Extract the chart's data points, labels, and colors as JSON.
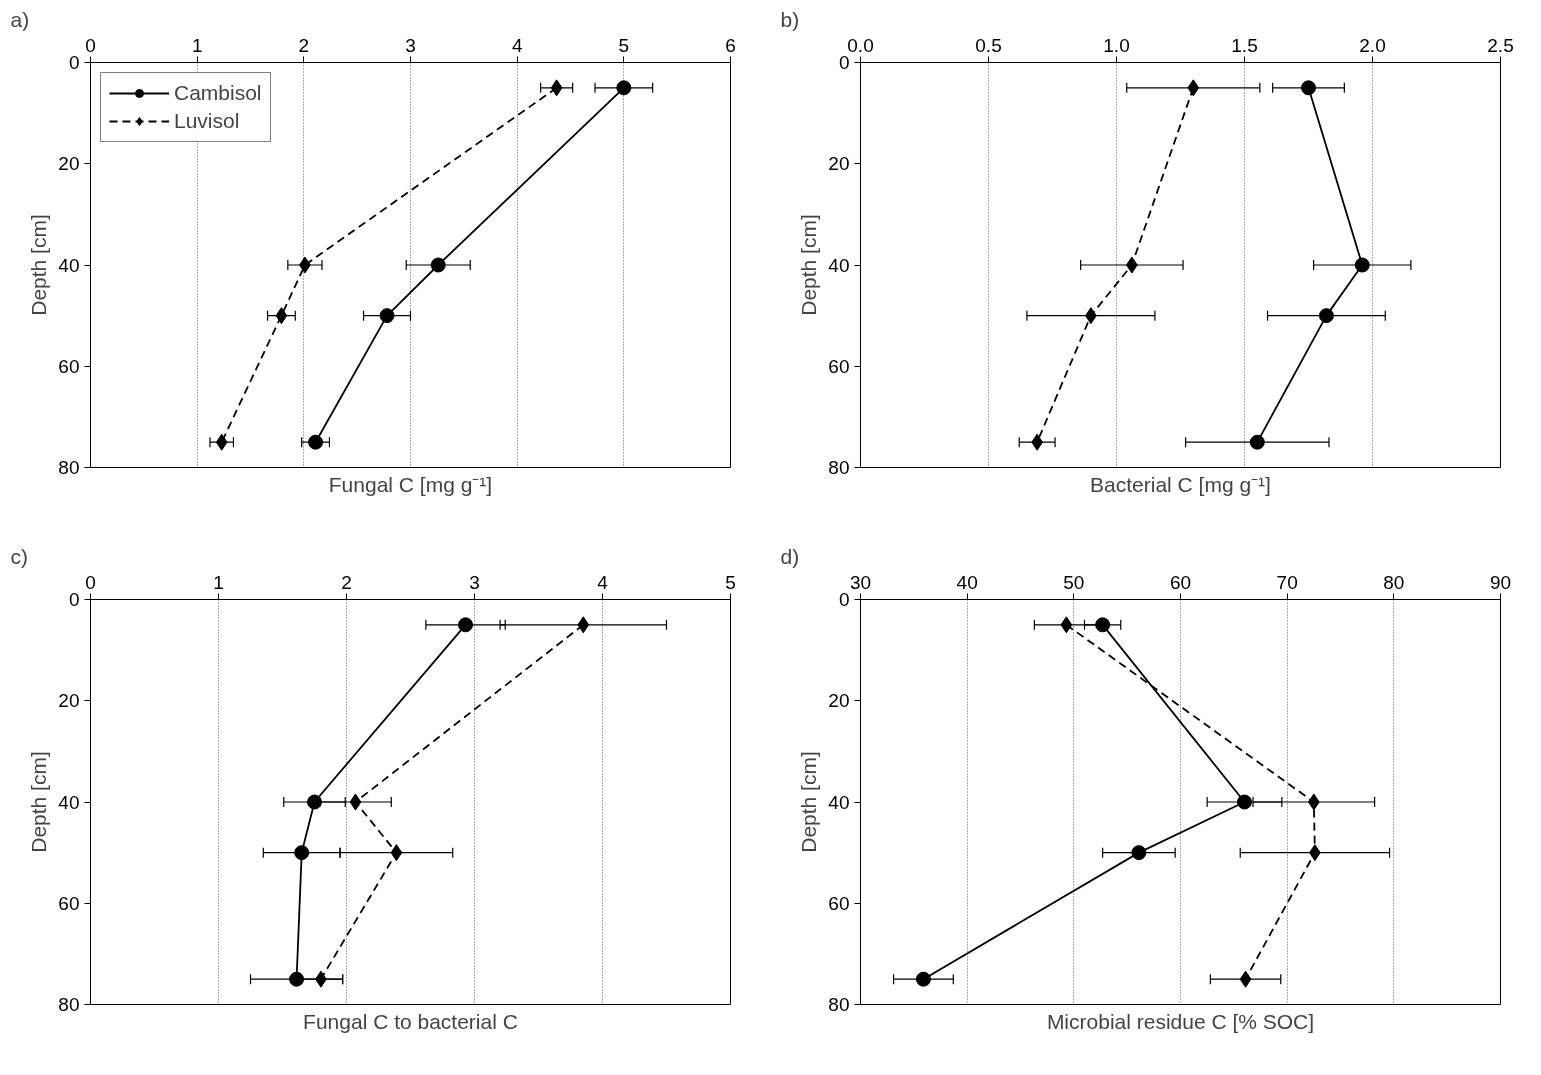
{
  "chart_data": [
    {
      "type": "line",
      "annotations": [
        "a)"
      ],
      "xlabel": "Fungal C [mg g⁻¹]",
      "ylabel": "Depth [cm]",
      "xlim": [
        0,
        6
      ],
      "xticks": [
        0,
        1,
        2,
        3,
        4,
        5,
        6
      ],
      "ylim": [
        80,
        0
      ],
      "yticks": [
        0,
        20,
        40,
        60,
        80
      ],
      "grid": "x",
      "legend": "top left",
      "series": [
        {
          "name": "Cambisol",
          "color": "#000000",
          "marker": "circle",
          "line_style": "solid",
          "x": [
            5.0,
            3.26,
            2.78,
            2.11
          ],
          "values": [
            5,
            40,
            50,
            75
          ],
          "xerrors": [
            0.27,
            0.3,
            0.22,
            0.13
          ]
        },
        {
          "name": "Luvisol",
          "color": "#000000",
          "marker": "diamond",
          "line_style": "dashed",
          "x": [
            4.37,
            2.01,
            1.79,
            1.23
          ],
          "values": [
            5,
            40,
            50,
            75
          ],
          "xerrors": [
            0.15,
            0.16,
            0.13,
            0.11
          ]
        }
      ]
    },
    {
      "type": "line",
      "annotations": [
        "b)"
      ],
      "xlabel": "Bacterial C [mg g⁻¹]",
      "ylabel": "Depth [cm]",
      "xlim": [
        0,
        2.5
      ],
      "xticks": [
        {
          "value": 0,
          "label": "0.0"
        },
        0.5,
        {
          "value": 1,
          "label": "1.0"
        },
        1.5,
        {
          "value": 2,
          "label": "2.0"
        },
        2.5
      ],
      "ylim": [
        80,
        0
      ],
      "yticks": [
        0,
        20,
        40,
        60,
        80
      ],
      "grid": "x",
      "series": [
        {
          "color": "#000000",
          "marker": "circle",
          "line_style": "solid",
          "x": [
            1.75,
            1.96,
            1.82,
            1.55
          ],
          "values": [
            5,
            40,
            50,
            75
          ],
          "xerrors": [
            0.14,
            0.19,
            0.23,
            0.28
          ]
        },
        {
          "color": "#000000",
          "marker": "diamond",
          "line_style": "dashed",
          "x": [
            1.3,
            1.06,
            0.9,
            0.69
          ],
          "values": [
            5,
            40,
            50,
            75
          ],
          "xerrors": [
            0.26,
            0.2,
            0.25,
            0.07
          ]
        }
      ]
    },
    {
      "type": "line",
      "annotations": [
        "c)"
      ],
      "xlabel": "Fungal C to bacterial C",
      "ylabel": "Depth [cm]",
      "xlim": [
        0,
        5
      ],
      "xticks": [
        0,
        1,
        2,
        3,
        4,
        5
      ],
      "ylim": [
        80,
        0
      ],
      "yticks": [
        0,
        20,
        40,
        60,
        80
      ],
      "grid": "x",
      "series": [
        {
          "color": "#000000",
          "marker": "circle",
          "line_style": "solid",
          "x": [
            2.93,
            1.75,
            1.65,
            1.61
          ],
          "values": [
            5,
            40,
            50,
            75
          ],
          "xerrors": [
            0.31,
            0.24,
            0.3,
            0.36
          ]
        },
        {
          "color": "#000000",
          "marker": "diamond",
          "line_style": "dashed",
          "x": [
            3.85,
            2.07,
            2.39,
            1.8
          ],
          "values": [
            5,
            40,
            50,
            75
          ],
          "xerrors": [
            0.65,
            0.28,
            0.44,
            0.17
          ]
        }
      ]
    },
    {
      "type": "line",
      "annotations": [
        "d)"
      ],
      "xlabel": "Microbial residue C [% SOC]",
      "ylabel": "Depth [cm]",
      "xlim": [
        30,
        90
      ],
      "xticks": [
        30,
        40,
        50,
        60,
        70,
        80,
        90
      ],
      "ylim": [
        80,
        0
      ],
      "yticks": [
        0,
        20,
        40,
        60,
        80
      ],
      "grid": "x",
      "series": [
        {
          "color": "#000000",
          "marker": "circle",
          "line_style": "solid",
          "x": [
            52.7,
            66.0,
            56.1,
            35.9
          ],
          "values": [
            5,
            40,
            50,
            75
          ],
          "xerrors": [
            1.7,
            3.5,
            3.4,
            2.8
          ]
        },
        {
          "color": "#000000",
          "marker": "diamond",
          "line_style": "dashed",
          "x": [
            49.3,
            72.5,
            72.6,
            66.1
          ],
          "values": [
            5,
            40,
            50,
            75
          ],
          "xerrors": [
            3.0,
            5.7,
            7.0,
            3.3
          ]
        }
      ]
    }
  ]
}
